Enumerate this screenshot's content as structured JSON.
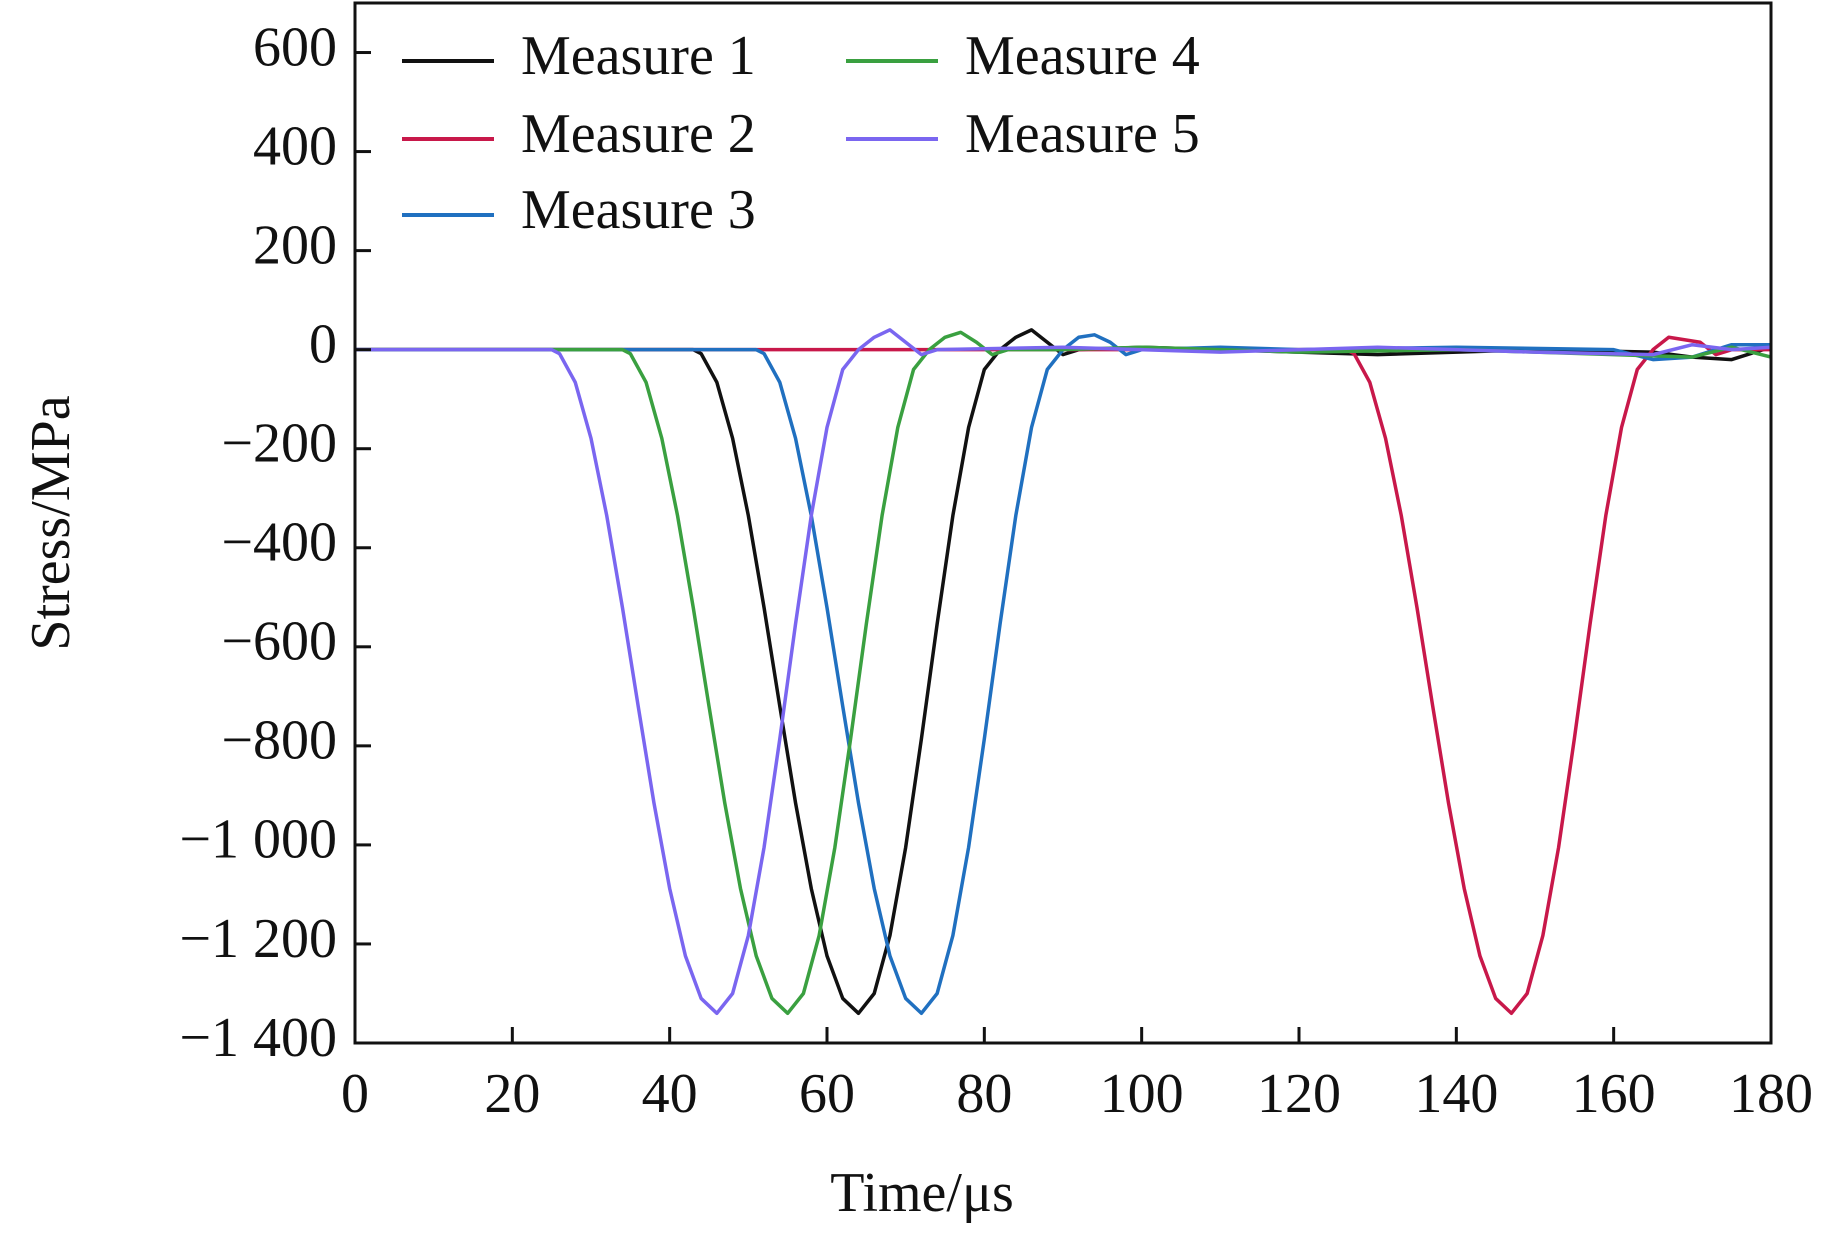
{
  "chart_data": {
    "type": "line",
    "xlabel": "Time/μs",
    "ylabel": "Stress/MPa",
    "xlim": [
      0,
      180
    ],
    "xticks": [
      0,
      20,
      40,
      60,
      80,
      100,
      120,
      140,
      160,
      180
    ],
    "ylim": [
      -1400,
      700
    ],
    "yticks": [
      600,
      400,
      200,
      0,
      {
        "value": -200,
        "label": "−200"
      },
      {
        "value": -400,
        "label": "−400"
      },
      {
        "value": -600,
        "label": "−600"
      },
      {
        "value": -800,
        "label": "−800"
      },
      {
        "value": -1000,
        "label": "−1 000"
      },
      {
        "value": -1200,
        "label": "−1 200"
      },
      {
        "value": -1400,
        "label": "−1 400"
      }
    ],
    "grid": false,
    "legend": "upper left",
    "series": [
      {
        "name": "Measure 1",
        "color": "#111111",
        "x": [
          0,
          43,
          44,
          46,
          48,
          50,
          52,
          54,
          56,
          58,
          60,
          62,
          64,
          66,
          68,
          70,
          72,
          74,
          76,
          78,
          80,
          82,
          84,
          86,
          88,
          90,
          92,
          100,
          110,
          130,
          150,
          165,
          170,
          175,
          180
        ],
        "values": [
          0,
          0,
          -8,
          -66,
          -179,
          -335,
          -521,
          -720,
          -915,
          -1088,
          -1224,
          -1310,
          -1340,
          -1300,
          -1183,
          -1005,
          -786,
          -554,
          -335,
          -157,
          -40,
          0,
          25,
          40,
          15,
          -10,
          0,
          5,
          0,
          -10,
          0,
          -5,
          -15,
          -20,
          5
        ]
      },
      {
        "name": "Measure 2",
        "color": "#c8184a",
        "x": [
          0,
          126,
          127,
          129,
          131,
          133,
          135,
          137,
          139,
          141,
          143,
          145,
          147,
          149,
          151,
          153,
          155,
          157,
          159,
          161,
          163,
          165,
          167,
          169,
          171,
          173,
          175,
          180
        ],
        "values": [
          0,
          0,
          -8,
          -66,
          -179,
          -335,
          -521,
          -720,
          -915,
          -1088,
          -1224,
          -1310,
          -1340,
          -1300,
          -1183,
          -1005,
          -786,
          -554,
          -335,
          -157,
          -40,
          0,
          25,
          20,
          15,
          -10,
          0,
          0
        ]
      },
      {
        "name": "Measure 3",
        "color": "#2070c0",
        "x": [
          0,
          51,
          52,
          54,
          56,
          58,
          60,
          62,
          64,
          66,
          68,
          70,
          72,
          74,
          76,
          78,
          80,
          82,
          84,
          86,
          88,
          90,
          92,
          94,
          96,
          98,
          100,
          110,
          120,
          140,
          160,
          165,
          170,
          175,
          180
        ],
        "values": [
          0,
          0,
          -8,
          -66,
          -179,
          -335,
          -521,
          -720,
          -915,
          -1088,
          -1224,
          -1310,
          -1340,
          -1300,
          -1183,
          -1005,
          -786,
          -554,
          -335,
          -157,
          -40,
          0,
          25,
          30,
          15,
          -10,
          0,
          5,
          0,
          5,
          0,
          -20,
          -15,
          10,
          10
        ]
      },
      {
        "name": "Measure 4",
        "color": "#3aa040",
        "x": [
          0,
          34,
          35,
          37,
          39,
          41,
          43,
          45,
          47,
          49,
          51,
          53,
          55,
          57,
          59,
          61,
          63,
          65,
          67,
          69,
          71,
          73,
          75,
          77,
          79,
          81,
          83,
          90,
          100,
          120,
          140,
          160,
          170,
          175,
          180
        ],
        "values": [
          0,
          0,
          -8,
          -66,
          -179,
          -335,
          -521,
          -720,
          -915,
          -1088,
          -1224,
          -1310,
          -1340,
          -1300,
          -1183,
          -1005,
          -786,
          -554,
          -335,
          -157,
          -40,
          0,
          25,
          35,
          15,
          -10,
          0,
          0,
          5,
          -5,
          0,
          -10,
          -15,
          5,
          -15
        ]
      },
      {
        "name": "Measure 5",
        "color": "#7a66f0",
        "x": [
          0,
          25,
          26,
          28,
          30,
          32,
          34,
          36,
          38,
          40,
          42,
          44,
          46,
          48,
          50,
          52,
          54,
          56,
          58,
          60,
          62,
          64,
          66,
          68,
          70,
          72,
          74,
          90,
          110,
          130,
          150,
          165,
          170,
          175,
          180
        ],
        "values": [
          0,
          0,
          -8,
          -66,
          -179,
          -335,
          -521,
          -720,
          -915,
          -1088,
          -1224,
          -1310,
          -1340,
          -1300,
          -1183,
          -1005,
          -786,
          -554,
          -335,
          -157,
          -40,
          0,
          25,
          40,
          15,
          -10,
          0,
          5,
          -5,
          5,
          -5,
          -10,
          10,
          0,
          5
        ]
      }
    ]
  }
}
